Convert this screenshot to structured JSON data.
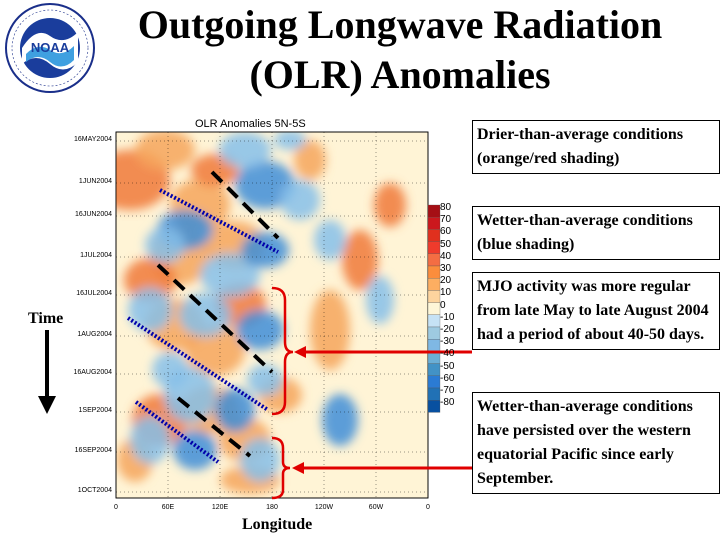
{
  "slide": {
    "title_line1": "Outgoing Longwave Radiation",
    "title_line2": "(OLR) Anomalies",
    "logo_text": "NOAA"
  },
  "annotations": {
    "drier": "Drier-than-average conditions (orange/red shading)",
    "wetter": "Wetter-than-average conditions (blue shading)",
    "mjo": "MJO activity was more regular from late May to late August 2004 had a period of about 40-50 days.",
    "persist": "Wetter-than-average conditions have persisted over the western equatorial Pacific since early September.",
    "time_label": "Time",
    "longitude_label": "Longitude"
  },
  "chart_data": {
    "type": "heatmap",
    "title": "OLR Anomalies 5N-5S",
    "x_ticks": [
      "0",
      "60E",
      "120E",
      "180",
      "120W",
      "60W",
      "0"
    ],
    "y_ticks": [
      "16MAY2004",
      "1JUN2004",
      "16JUN2004",
      "1JUL2004",
      "16JUL2004",
      "1AUG2004",
      "16AUG2004",
      "1SEP2004",
      "16SEP2004",
      "1OCT2004"
    ],
    "colorbar": {
      "levels": [
        "80",
        "70",
        "60",
        "50",
        "40",
        "30",
        "20",
        "10",
        "0",
        "-10",
        "-20",
        "-30",
        "-40",
        "-50",
        "-60",
        "-70",
        "-80"
      ],
      "colors": [
        "#a50f15",
        "#cb181d",
        "#e0301e",
        "#ef3b2c",
        "#f46d43",
        "#fb8d3c",
        "#fdae61",
        "#fdd49e",
        "#fef6d8",
        "#c6e2f5",
        "#9ecae1",
        "#7fb8e4",
        "#6baed6",
        "#4292c6",
        "#2b7bd4",
        "#2171b5",
        "#0850a0"
      ]
    },
    "colors": {
      "background": "#fff4d6",
      "dry": "#f4a460",
      "wet": "#7fb8e4",
      "bracket": "#e00000",
      "arrow": "#e00000",
      "dots": "#0000aa",
      "dashes": "#000000"
    }
  }
}
